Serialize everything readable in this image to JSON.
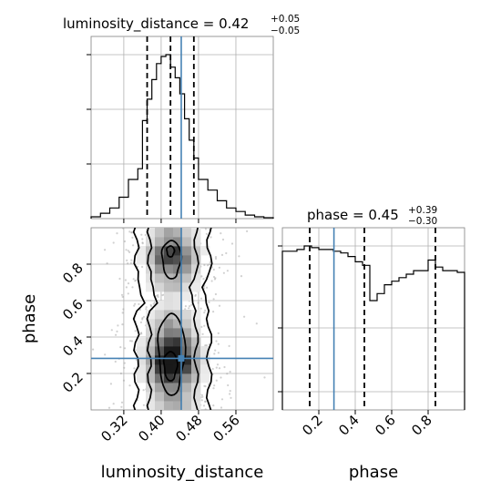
{
  "chart_data": {
    "type": "corner",
    "parameters": [
      "luminosity_distance",
      "phase"
    ],
    "truth": {
      "luminosity_distance": 0.443,
      "phase": 0.283
    },
    "truth_color": "#4682b4",
    "panels": [
      {
        "id": "luminosity_distance_marginal",
        "type": "histogram",
        "title": "luminosity_distance",
        "title_median": "0.42",
        "title_plus": "+0.05",
        "title_minus": "−0.05",
        "xlim": [
          0.25,
          0.64
        ],
        "bin_edges": [
          0.25,
          0.27,
          0.29,
          0.31,
          0.33,
          0.35,
          0.36,
          0.37,
          0.38,
          0.39,
          0.4,
          0.41,
          0.42,
          0.43,
          0.44,
          0.45,
          0.46,
          0.47,
          0.48,
          0.5,
          0.52,
          0.54,
          0.56,
          0.58,
          0.6,
          0.62,
          0.64
        ],
        "counts": [
          0.01,
          0.03,
          0.06,
          0.12,
          0.22,
          0.28,
          0.55,
          0.67,
          0.78,
          0.87,
          0.91,
          0.92,
          0.85,
          0.79,
          0.7,
          0.56,
          0.44,
          0.34,
          0.22,
          0.16,
          0.1,
          0.06,
          0.04,
          0.02,
          0.01,
          0.005
        ],
        "quantiles": [
          0.37,
          0.42,
          0.47
        ]
      },
      {
        "id": "phase_marginal",
        "type": "histogram",
        "title": "phase",
        "title_median": "0.45",
        "title_plus": "+0.39",
        "title_minus": "−0.30",
        "xlim": [
          0.0,
          1.0
        ],
        "bin_edges": [
          0.0,
          0.04,
          0.08,
          0.12,
          0.16,
          0.2,
          0.24,
          0.28,
          0.32,
          0.36,
          0.4,
          0.44,
          0.48,
          0.52,
          0.56,
          0.6,
          0.64,
          0.68,
          0.72,
          0.76,
          0.8,
          0.84,
          0.88,
          0.92,
          0.96,
          1.0
        ],
        "counts": [
          0.9,
          0.9,
          0.91,
          0.93,
          0.92,
          0.91,
          0.91,
          0.9,
          0.89,
          0.87,
          0.84,
          0.82,
          0.62,
          0.66,
          0.71,
          0.73,
          0.75,
          0.77,
          0.79,
          0.79,
          0.85,
          0.81,
          0.79,
          0.79,
          0.78
        ],
        "quantiles": [
          0.15,
          0.45,
          0.84
        ]
      },
      {
        "id": "joint_density",
        "type": "density2d",
        "xlim": [
          0.25,
          0.64
        ],
        "ylim": [
          0.0,
          1.0
        ],
        "contours": [
          {
            "level": "outer",
            "x_center": 0.425,
            "half_width": 0.078
          },
          {
            "level": "middle",
            "x_center": 0.425,
            "half_width": 0.05
          },
          {
            "level": "inner_upper",
            "y_range": [
              0.72,
              0.93
            ]
          },
          {
            "level": "inner_lower",
            "y_range": [
              0.08,
              0.53
            ]
          }
        ]
      }
    ],
    "axes": {
      "x_bottom_left": {
        "label": "luminosity_distance",
        "ticks": [
          0.32,
          0.4,
          0.48,
          0.56
        ],
        "tick_labels": [
          "0.32",
          "0.40",
          "0.48",
          "0.56"
        ]
      },
      "y_left": {
        "label": "phase",
        "ticks": [
          0.2,
          0.4,
          0.6,
          0.8
        ],
        "tick_labels": [
          "0.2",
          "0.4",
          "0.6",
          "0.8"
        ]
      },
      "x_bottom_right": {
        "label": "phase",
        "ticks": [
          0.2,
          0.4,
          0.6,
          0.8
        ],
        "tick_labels": [
          "0.2",
          "0.4",
          "0.6",
          "0.8"
        ]
      }
    },
    "grid": true
  }
}
